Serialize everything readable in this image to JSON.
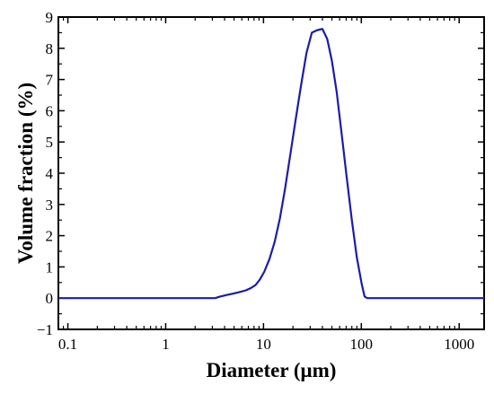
{
  "chart_data": {
    "type": "line",
    "title": "",
    "xlabel": "Diameter (μm)",
    "ylabel": "Volume fraction (%)",
    "xscale": "log",
    "xlim": [
      0.08,
      1800
    ],
    "ylim": [
      -1,
      9
    ],
    "grid": false,
    "legend": "none",
    "x_ticks": [
      {
        "value": 0.1,
        "label": "0.1"
      },
      {
        "value": 1,
        "label": "1"
      },
      {
        "value": 10,
        "label": "10"
      },
      {
        "value": 100,
        "label": "100"
      },
      {
        "value": 1000,
        "label": "1000"
      }
    ],
    "y_ticks": [
      {
        "value": -1,
        "label": "−1"
      },
      {
        "value": 0,
        "label": "0"
      },
      {
        "value": 1,
        "label": "1"
      },
      {
        "value": 2,
        "label": "2"
      },
      {
        "value": 3,
        "label": "3"
      },
      {
        "value": 4,
        "label": "4"
      },
      {
        "value": 5,
        "label": "5"
      },
      {
        "value": 6,
        "label": "6"
      },
      {
        "value": 7,
        "label": "7"
      },
      {
        "value": 8,
        "label": "8"
      },
      {
        "value": 9,
        "label": "9"
      }
    ],
    "series": [
      {
        "color": "#1c1ca8",
        "x": [
          0.08,
          1,
          3.2,
          3.6,
          4.2,
          5,
          5.8,
          6.6,
          7.4,
          8.3,
          9.2,
          10.2,
          11.5,
          13,
          14.7,
          16.6,
          18.8,
          21.4,
          24.3,
          27.5,
          31.2,
          35.4,
          40,
          44.8,
          50,
          56,
          63,
          71,
          80,
          90,
          101,
          108,
          115,
          200,
          500,
          1000,
          1800
        ],
        "y": [
          0,
          0,
          0,
          0.05,
          0.1,
          0.15,
          0.2,
          0.25,
          0.32,
          0.42,
          0.6,
          0.85,
          1.25,
          1.8,
          2.55,
          3.5,
          4.6,
          5.75,
          6.85,
          7.85,
          8.5,
          8.58,
          8.62,
          8.3,
          7.6,
          6.6,
          5.25,
          3.85,
          2.5,
          1.3,
          0.45,
          0.05,
          0,
          0,
          0,
          0,
          0
        ]
      }
    ]
  }
}
